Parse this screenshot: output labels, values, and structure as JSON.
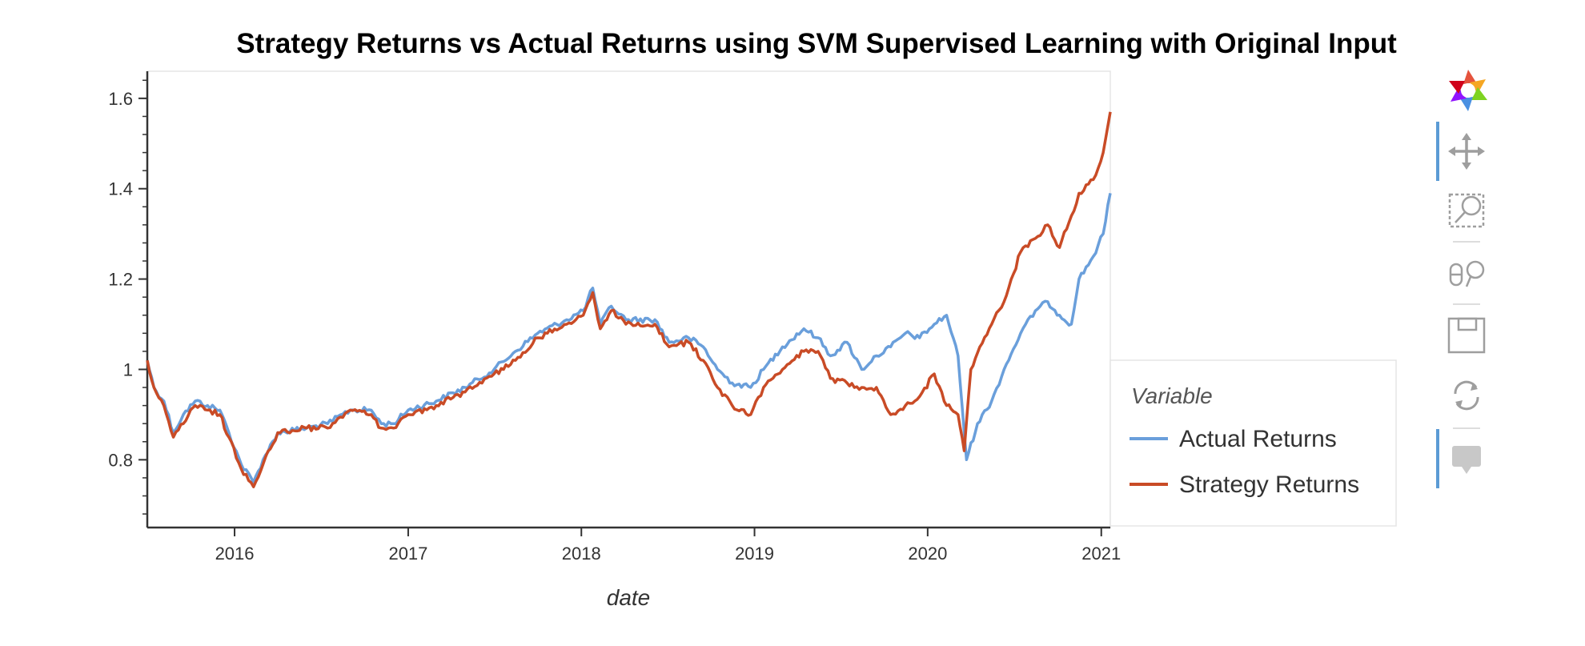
{
  "chart_data": {
    "type": "line",
    "title": "Strategy Returns vs Actual Returns using SVM Supervised Learning with Original Input",
    "xlabel": "date",
    "ylabel": "",
    "x_ticks": [
      "2016",
      "2017",
      "2018",
      "2019",
      "2020",
      "2021"
    ],
    "y_ticks": [
      "0.8",
      "1",
      "1.2",
      "1.4",
      "1.6"
    ],
    "xlim": [
      "2015-07-01",
      "2021-01-20"
    ],
    "ylim": [
      0.65,
      1.66
    ],
    "grid": false,
    "legend": {
      "title": "Variable",
      "placement": "right"
    },
    "series": [
      {
        "name": "Actual Returns",
        "color": "#6a9fdb",
        "points": [
          [
            "2015-07-01",
            1.02
          ],
          [
            "2015-07-15",
            0.96
          ],
          [
            "2015-08-05",
            0.93
          ],
          [
            "2015-08-25",
            0.86
          ],
          [
            "2015-09-15",
            0.9
          ],
          [
            "2015-10-10",
            0.93
          ],
          [
            "2015-11-05",
            0.92
          ],
          [
            "2015-12-01",
            0.91
          ],
          [
            "2015-12-20",
            0.86
          ],
          [
            "2016-01-15",
            0.79
          ],
          [
            "2016-02-10",
            0.75
          ],
          [
            "2016-03-01",
            0.8
          ],
          [
            "2016-04-01",
            0.86
          ],
          [
            "2016-06-01",
            0.87
          ],
          [
            "2016-07-15",
            0.88
          ],
          [
            "2016-09-01",
            0.91
          ],
          [
            "2016-10-15",
            0.91
          ],
          [
            "2016-11-05",
            0.88
          ],
          [
            "2016-12-01",
            0.88
          ],
          [
            "2017-01-01",
            0.91
          ],
          [
            "2017-03-01",
            0.93
          ],
          [
            "2017-05-01",
            0.96
          ],
          [
            "2017-07-01",
            1.0
          ],
          [
            "2017-08-15",
            1.04
          ],
          [
            "2017-10-01",
            1.08
          ],
          [
            "2017-12-01",
            1.11
          ],
          [
            "2018-01-05",
            1.13
          ],
          [
            "2018-01-25",
            1.18
          ],
          [
            "2018-02-10",
            1.1
          ],
          [
            "2018-03-05",
            1.14
          ],
          [
            "2018-04-05",
            1.11
          ],
          [
            "2018-06-05",
            1.11
          ],
          [
            "2018-07-05",
            1.06
          ],
          [
            "2018-08-15",
            1.07
          ],
          [
            "2018-09-15",
            1.05
          ],
          [
            "2018-10-15",
            1.0
          ],
          [
            "2018-11-15",
            0.97
          ],
          [
            "2018-12-24",
            0.96
          ],
          [
            "2019-01-20",
            1.0
          ],
          [
            "2019-03-01",
            1.05
          ],
          [
            "2019-04-15",
            1.09
          ],
          [
            "2019-05-15",
            1.07
          ],
          [
            "2019-06-10",
            1.03
          ],
          [
            "2019-07-15",
            1.06
          ],
          [
            "2019-08-15",
            1.0
          ],
          [
            "2019-09-15",
            1.03
          ],
          [
            "2019-10-15",
            1.05
          ],
          [
            "2019-11-15",
            1.08
          ],
          [
            "2019-12-15",
            1.07
          ],
          [
            "2020-01-15",
            1.1
          ],
          [
            "2020-02-10",
            1.12
          ],
          [
            "2020-03-05",
            1.03
          ],
          [
            "2020-03-23",
            0.8
          ],
          [
            "2020-04-15",
            0.88
          ],
          [
            "2020-05-15",
            0.93
          ],
          [
            "2020-06-10",
            1.0
          ],
          [
            "2020-07-15",
            1.08
          ],
          [
            "2020-08-15",
            1.13
          ],
          [
            "2020-09-10",
            1.15
          ],
          [
            "2020-10-05",
            1.12
          ],
          [
            "2020-10-30",
            1.1
          ],
          [
            "2020-11-15",
            1.2
          ],
          [
            "2020-12-15",
            1.25
          ],
          [
            "2021-01-05",
            1.3
          ],
          [
            "2021-01-20",
            1.39
          ]
        ]
      },
      {
        "name": "Strategy Returns",
        "color": "#c94b26",
        "points": [
          [
            "2015-07-01",
            1.02
          ],
          [
            "2015-07-15",
            0.96
          ],
          [
            "2015-08-05",
            0.92
          ],
          [
            "2015-08-25",
            0.85
          ],
          [
            "2015-09-15",
            0.88
          ],
          [
            "2015-10-10",
            0.92
          ],
          [
            "2015-11-05",
            0.91
          ],
          [
            "2015-12-01",
            0.9
          ],
          [
            "2015-12-20",
            0.85
          ],
          [
            "2016-01-15",
            0.78
          ],
          [
            "2016-02-10",
            0.74
          ],
          [
            "2016-03-01",
            0.79
          ],
          [
            "2016-04-01",
            0.86
          ],
          [
            "2016-06-01",
            0.87
          ],
          [
            "2016-07-15",
            0.87
          ],
          [
            "2016-09-01",
            0.91
          ],
          [
            "2016-10-15",
            0.9
          ],
          [
            "2016-11-05",
            0.87
          ],
          [
            "2016-12-01",
            0.87
          ],
          [
            "2017-01-01",
            0.9
          ],
          [
            "2017-03-01",
            0.92
          ],
          [
            "2017-05-01",
            0.95
          ],
          [
            "2017-07-01",
            0.99
          ],
          [
            "2017-08-15",
            1.02
          ],
          [
            "2017-10-01",
            1.07
          ],
          [
            "2017-12-01",
            1.1
          ],
          [
            "2018-01-05",
            1.12
          ],
          [
            "2018-01-25",
            1.17
          ],
          [
            "2018-02-10",
            1.09
          ],
          [
            "2018-03-05",
            1.13
          ],
          [
            "2018-04-05",
            1.1
          ],
          [
            "2018-06-05",
            1.1
          ],
          [
            "2018-07-05",
            1.05
          ],
          [
            "2018-08-15",
            1.06
          ],
          [
            "2018-09-15",
            1.02
          ],
          [
            "2018-10-15",
            0.96
          ],
          [
            "2018-11-15",
            0.92
          ],
          [
            "2018-12-24",
            0.9
          ],
          [
            "2019-01-20",
            0.96
          ],
          [
            "2019-03-01",
            1.0
          ],
          [
            "2019-04-15",
            1.04
          ],
          [
            "2019-05-15",
            1.04
          ],
          [
            "2019-06-10",
            0.98
          ],
          [
            "2019-07-15",
            0.97
          ],
          [
            "2019-08-15",
            0.96
          ],
          [
            "2019-09-15",
            0.96
          ],
          [
            "2019-10-15",
            0.9
          ],
          [
            "2019-11-15",
            0.92
          ],
          [
            "2019-12-15",
            0.94
          ],
          [
            "2020-01-15",
            0.99
          ],
          [
            "2020-02-10",
            0.92
          ],
          [
            "2020-03-05",
            0.9
          ],
          [
            "2020-03-18",
            0.82
          ],
          [
            "2020-04-01",
            1.0
          ],
          [
            "2020-04-20",
            1.05
          ],
          [
            "2020-05-15",
            1.1
          ],
          [
            "2020-06-10",
            1.15
          ],
          [
            "2020-07-15",
            1.26
          ],
          [
            "2020-08-15",
            1.29
          ],
          [
            "2020-09-10",
            1.32
          ],
          [
            "2020-10-05",
            1.27
          ],
          [
            "2020-10-30",
            1.34
          ],
          [
            "2020-11-15",
            1.39
          ],
          [
            "2020-12-15",
            1.42
          ],
          [
            "2021-01-05",
            1.48
          ],
          [
            "2021-01-20",
            1.57
          ]
        ]
      }
    ]
  },
  "toolbar": {
    "tools": [
      {
        "name": "pan-tool",
        "icon": "pan-icon",
        "active": true
      },
      {
        "name": "box-zoom-tool",
        "icon": "box-zoom-icon",
        "active": false
      },
      {
        "name": "wheel-zoom-tool",
        "icon": "wheel-zoom-icon",
        "active": false
      },
      {
        "name": "save-tool",
        "icon": "save-icon",
        "active": false
      },
      {
        "name": "reset-tool",
        "icon": "reset-icon",
        "active": false
      },
      {
        "name": "hover-tool",
        "icon": "hover-icon",
        "active": true
      }
    ]
  }
}
